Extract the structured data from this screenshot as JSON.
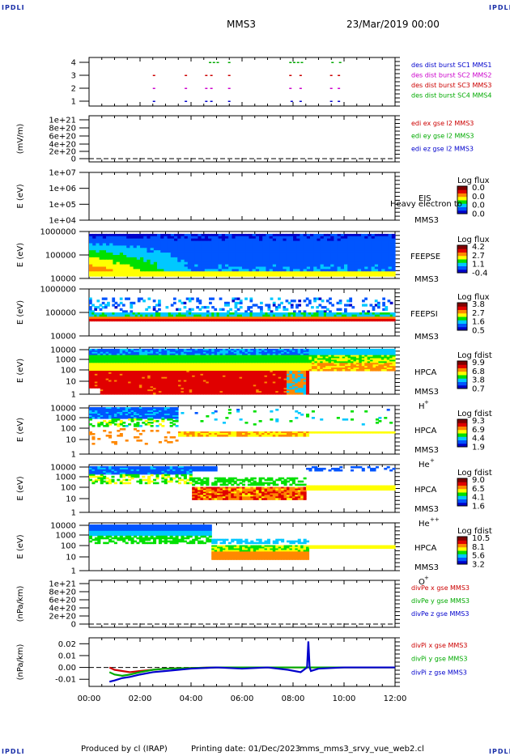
{
  "logo": "IPDLI",
  "header": {
    "spacecraft": "MMS3",
    "datetime": "23/Mar/2019 00:00"
  },
  "footer": {
    "produced": "Produced by cl (IRAP)",
    "printing": "Printing date: 01/Dec/2023",
    "script": "mms_mms3_srvy_vue_web2.cl"
  },
  "colors": {
    "red": "#cc0000",
    "magenta": "#cc00cc",
    "blue": "#0000cc",
    "green": "#00aa00",
    "colorbar": [
      "#0000c8",
      "#0055ff",
      "#00c8ff",
      "#00e000",
      "#ffff00",
      "#ff8800",
      "#e00000",
      "#800000"
    ]
  },
  "chart_data": [
    {
      "type": "scatter",
      "id": "burst",
      "yticks": [
        "4",
        "3",
        "2",
        "1"
      ],
      "legend": [
        "des dist burst SC1 MMS1",
        "des dist burst SC2 MMS2",
        "des dist burst SC3 MMS3",
        "des dist burst SC4 MMS4"
      ],
      "legend_colors": [
        "#0000cc",
        "#cc00cc",
        "#cc0000",
        "#00aa00"
      ],
      "series": [
        {
          "y": 4,
          "color": "#00aa00",
          "t": [
            4.7,
            4.85,
            5.0,
            5.45,
            7.85,
            8.0,
            8.15,
            8.3,
            9.5,
            9.8
          ]
        },
        {
          "y": 3,
          "color": "#cc0000",
          "t": [
            2.5,
            3.75,
            4.55,
            4.75,
            5.45,
            7.85,
            8.25,
            9.45,
            9.75
          ]
        },
        {
          "y": 2,
          "color": "#cc00cc",
          "t": [
            2.5,
            3.75,
            4.55,
            4.75,
            5.45,
            7.85,
            8.25,
            9.45,
            9.75
          ]
        },
        {
          "y": 1,
          "color": "#0000cc",
          "t": [
            2.5,
            3.75,
            4.55,
            4.75,
            5.45,
            7.9,
            8.25,
            9.45,
            9.75
          ]
        }
      ]
    },
    {
      "type": "line",
      "id": "edi",
      "ylabel": "(mV/m)",
      "yticks": [
        "1e+21",
        "8e+20",
        "6e+20",
        "4e+20",
        "2e+20",
        "0"
      ],
      "legend": [
        "edi ex gse l2 MMS3",
        "edi ey gse l2 MMS3",
        "edi ez gse l2 MMS3"
      ],
      "legend_colors": [
        "#cc0000",
        "#00aa00",
        "#0000cc"
      ]
    },
    {
      "type": "heatmap",
      "id": "eis",
      "ylabel": "E (eV)",
      "yticks": [
        "1e+07",
        "1e+06",
        "1e+05",
        "1e+04"
      ],
      "instrument": "EIS",
      "overlay_text": "Heavy electron to",
      "sc": "MMS3",
      "cb_title": "Log flux",
      "cb_ticks": [
        "0.0",
        "0.0",
        "0.0",
        "0.0"
      ]
    },
    {
      "type": "heatmap",
      "id": "feepse",
      "ylabel": "E (eV)",
      "yticks": [
        "1000000",
        "100000",
        "10000"
      ],
      "instrument": "FEEPSE",
      "sc": "MMS3",
      "cb_title": "Log flux",
      "cb_ticks": [
        "4.2",
        "2.7",
        "1.1",
        "-0.4"
      ]
    },
    {
      "type": "heatmap",
      "id": "feepsi",
      "ylabel": "E (eV)",
      "yticks": [
        "1000000",
        "100000",
        "10000"
      ],
      "instrument": "FEEPSI",
      "sc": "MMS3",
      "cb_title": "Log flux",
      "cb_ticks": [
        "3.8",
        "2.7",
        "1.6",
        "0.5"
      ]
    },
    {
      "type": "heatmap",
      "id": "hpca_h",
      "ylabel": "E (eV)",
      "yticks": [
        "10000",
        "1000",
        "100",
        "10",
        "1"
      ],
      "instrument": "HPCA",
      "sc": "MMS3",
      "species": "H",
      "charge": "+",
      "cb_title": "Log fdist",
      "cb_ticks": [
        "9.9",
        "6.8",
        "3.8",
        "0.7"
      ]
    },
    {
      "type": "heatmap",
      "id": "hpca_he",
      "ylabel": "E (eV)",
      "yticks": [
        "10000",
        "1000",
        "100",
        "10",
        "1"
      ],
      "instrument": "HPCA",
      "sc": "MMS3",
      "species": "He",
      "charge": "+",
      "cb_title": "Log fdist",
      "cb_ticks": [
        "9.3",
        "6.9",
        "4.4",
        "1.9"
      ]
    },
    {
      "type": "heatmap",
      "id": "hpca_he2",
      "ylabel": "E (eV)",
      "yticks": [
        "10000",
        "1000",
        "100",
        "10",
        "1"
      ],
      "instrument": "HPCA",
      "sc": "MMS3",
      "species": "He",
      "charge": "++",
      "cb_title": "Log fdist",
      "cb_ticks": [
        "9.0",
        "6.5",
        "4.1",
        "1.6"
      ]
    },
    {
      "type": "heatmap",
      "id": "hpca_o",
      "ylabel": "E (eV)",
      "yticks": [
        "10000",
        "1000",
        "100",
        "10",
        "1"
      ],
      "instrument": "HPCA",
      "sc": "MMS3",
      "species": "O",
      "charge": "+",
      "cb_title": "Log fdist",
      "cb_ticks": [
        "10.5",
        "8.1",
        "5.6",
        "3.2"
      ]
    },
    {
      "type": "line",
      "id": "divpe",
      "ylabel": "(nPa/km)",
      "yticks": [
        "1e+21",
        "8e+20",
        "6e+20",
        "4e+20",
        "2e+20",
        "0"
      ],
      "legend": [
        "divPe x gse MMS3",
        "divPe y gse MMS3",
        "divPe z gse MMS3"
      ],
      "legend_colors": [
        "#cc0000",
        "#00aa00",
        "#0000cc"
      ]
    },
    {
      "type": "line",
      "id": "divpi",
      "ylabel": "(nPa/km)",
      "yticks": [
        "0.02",
        "0.01",
        "0.00",
        "-0.01"
      ],
      "legend": [
        "divPi x gse MMS3",
        "divPi y gse MMS3",
        "divPi z gse MMS3"
      ],
      "legend_colors": [
        "#cc0000",
        "#00aa00",
        "#0000cc"
      ],
      "ylim": [
        -0.016,
        0.025
      ],
      "series": [
        {
          "name": "divPi x gse MMS3",
          "color": "#cc0000",
          "t": [
            0.8,
            1.0,
            1.3,
            1.6,
            2.0,
            2.5,
            3.0,
            4.0,
            5.0,
            6.0,
            7.0,
            8.0,
            9.0,
            10.0,
            11.0,
            12.0
          ],
          "v": [
            0.0,
            -0.002,
            -0.003,
            -0.004,
            -0.003,
            -0.002,
            -0.001,
            -0.0005,
            0,
            0,
            0,
            0,
            0,
            0,
            0,
            0
          ]
        },
        {
          "name": "divPi y gse MMS3",
          "color": "#00aa00",
          "t": [
            0.8,
            1.0,
            1.3,
            1.6,
            2.0,
            2.5,
            3.0,
            4.0,
            5.0,
            6.0,
            7.0,
            8.0,
            9.0,
            10.0,
            11.0,
            12.0
          ],
          "v": [
            -0.004,
            -0.006,
            -0.007,
            -0.006,
            -0.004,
            -0.002,
            -0.001,
            -0.0005,
            0,
            0,
            0,
            0,
            0,
            0,
            0,
            0
          ]
        },
        {
          "name": "divPi z gse MMS3",
          "color": "#0000cc",
          "t": [
            0.8,
            1.0,
            1.3,
            1.6,
            2.0,
            2.5,
            3.0,
            3.5,
            4.0,
            5.0,
            6.0,
            7.0,
            7.8,
            8.3,
            8.55,
            8.6,
            8.65,
            8.7,
            9.0,
            10.0,
            11.0,
            12.0
          ],
          "v": [
            -0.012,
            -0.011,
            -0.009,
            -0.008,
            -0.006,
            -0.004,
            -0.003,
            -0.002,
            -0.001,
            0.0,
            -0.001,
            0.0,
            -0.002,
            -0.004,
            0.0,
            0.022,
            0.0,
            -0.003,
            -0.001,
            0.0,
            0.0,
            0.0
          ]
        }
      ]
    }
  ],
  "xaxis": {
    "ticks": [
      "00:00",
      "02:00",
      "04:00",
      "06:00",
      "08:00",
      "10:00",
      "12:00"
    ],
    "range": [
      0,
      12
    ]
  }
}
